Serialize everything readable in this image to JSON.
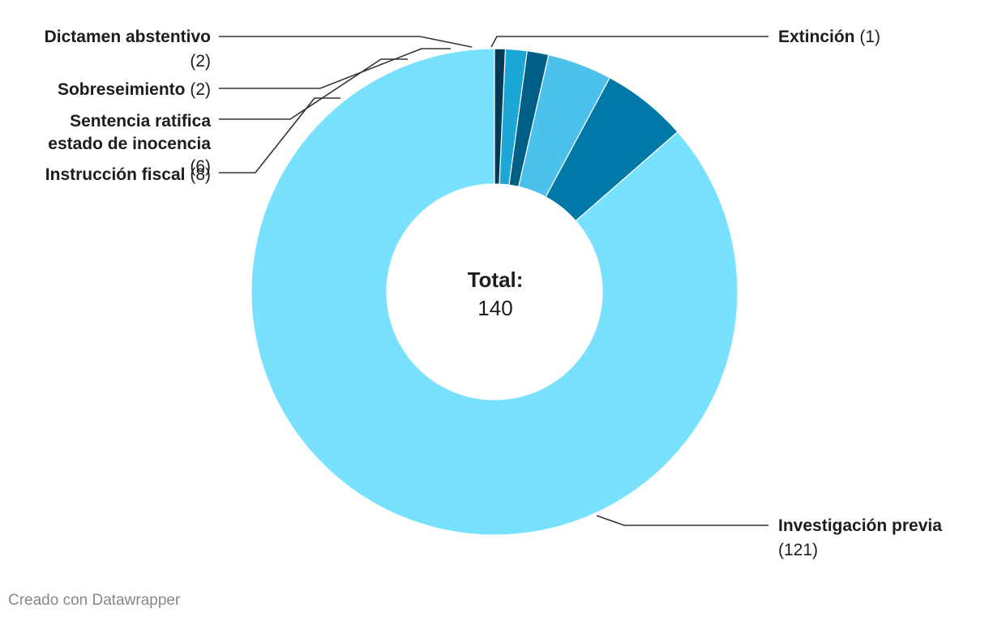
{
  "chart_data": {
    "type": "pie",
    "variant": "donut",
    "center_label": "Total:",
    "center_value": "140",
    "slices": [
      {
        "label": "Investigación previa",
        "value": 121,
        "color": "#78e1fe"
      },
      {
        "label": "Instrucción fiscal",
        "value": 8,
        "color": "#0079a8"
      },
      {
        "label": "Sentencia ratifica estado de inocencia",
        "value": 6,
        "color": "#4cc1ec"
      },
      {
        "label": "Sobreseimiento",
        "value": 2,
        "color": "#005f86"
      },
      {
        "label": "Dictamen abstentivo",
        "value": 2,
        "color": "#1ca7d6"
      },
      {
        "label": "Extinción",
        "value": 1,
        "color": "#003a57"
      }
    ],
    "labels": [
      {
        "lines": [
          [
            "Extinción",
            "(1)"
          ]
        ]
      },
      {
        "lines": [
          [
            "Investigación previa",
            ""
          ],
          [
            "",
            "(121)"
          ]
        ]
      },
      {
        "lines": [
          [
            "Dictamen abstentivo",
            ""
          ],
          [
            "",
            "(2)"
          ]
        ]
      },
      {
        "lines": [
          [
            "Sobreseimiento",
            "(2)"
          ]
        ]
      },
      {
        "lines": [
          [
            "Sentencia ratifica",
            ""
          ],
          [
            "estado de inocencia",
            ""
          ],
          [
            "",
            "(6)"
          ]
        ]
      },
      {
        "lines": [
          [
            "Instrucción fiscal",
            "(8)"
          ]
        ]
      }
    ]
  },
  "footer": {
    "credit": "Creado con Datawrapper"
  }
}
